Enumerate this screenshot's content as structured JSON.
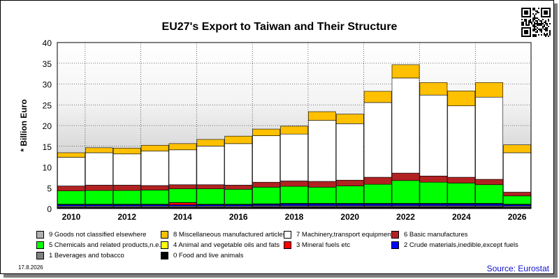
{
  "chart_data": {
    "type": "bar",
    "stacked": true,
    "title": "EU27's Export to Taiwan and Their Structure",
    "ylabel": "* Billion Euro",
    "xlabel": "",
    "ylim": [
      0,
      40
    ],
    "yticks": [
      0,
      5,
      10,
      15,
      20,
      25,
      30,
      35,
      40
    ],
    "categories": [
      "2010",
      "2011",
      "2012",
      "2013",
      "2014",
      "2015",
      "2016",
      "2017",
      "2018",
      "2019",
      "2020",
      "2021",
      "2022",
      "2023",
      "2024",
      "2025",
      "2026"
    ],
    "xtick_labels": [
      "2010",
      "2012",
      "2014",
      "2016",
      "2018",
      "2020",
      "2022",
      "2024",
      "2026"
    ],
    "grid": true,
    "series": [
      {
        "name": "0 Food and live animals",
        "color": "#000000",
        "values": [
          0.3,
          0.3,
          0.3,
          0.3,
          0.3,
          0.3,
          0.3,
          0.4,
          0.4,
          0.4,
          0.4,
          0.4,
          0.4,
          0.4,
          0.4,
          0.4,
          0.3
        ]
      },
      {
        "name": "1 Beverages and tobacco",
        "color": "#808080",
        "values": [
          0.3,
          0.3,
          0.3,
          0.3,
          0.3,
          0.3,
          0.3,
          0.3,
          0.3,
          0.3,
          0.3,
          0.3,
          0.3,
          0.3,
          0.3,
          0.3,
          0.3
        ]
      },
      {
        "name": "2 Crude materials,inedible,except fuels",
        "color": "#0000ff",
        "values": [
          0.3,
          0.3,
          0.3,
          0.3,
          0.3,
          0.3,
          0.3,
          0.3,
          0.4,
          0.4,
          0.4,
          0.4,
          0.4,
          0.4,
          0.4,
          0.4,
          0.3
        ]
      },
      {
        "name": "3 Mineral fuels etc",
        "color": "#ff0000",
        "values": [
          0.1,
          0.1,
          0.1,
          0.1,
          0.5,
          0.1,
          0.1,
          0.1,
          0.1,
          0.1,
          0.1,
          0.1,
          0.1,
          0.1,
          0.1,
          0.1,
          0.1
        ]
      },
      {
        "name": "4 Animal and vegetable oils and fats",
        "color": "#ffff00",
        "values": [
          0.05,
          0.05,
          0.05,
          0.05,
          0.05,
          0.05,
          0.05,
          0.05,
          0.05,
          0.05,
          0.05,
          0.05,
          0.05,
          0.05,
          0.05,
          0.05,
          0.05
        ]
      },
      {
        "name": "5 Chemicals and related products,n.e.s.",
        "color": "#00ff00",
        "values": [
          3.2,
          3.3,
          3.3,
          3.4,
          3.3,
          3.7,
          3.6,
          4.0,
          4.1,
          3.9,
          4.2,
          4.6,
          5.5,
          5.1,
          4.9,
          4.5,
          2.0
        ]
      },
      {
        "name": "6 Basic manufactures",
        "color": "#b22222",
        "values": [
          1.2,
          1.3,
          1.3,
          1.1,
          1.0,
          1.0,
          1.0,
          1.2,
          1.3,
          1.4,
          1.4,
          1.7,
          1.8,
          1.5,
          1.4,
          1.3,
          0.9
        ]
      },
      {
        "name": "7 Machinery,transport equipment",
        "color": "#ffffff",
        "values": [
          6.9,
          7.8,
          7.5,
          8.3,
          8.4,
          9.3,
          10.0,
          11.2,
          11.3,
          14.7,
          13.6,
          18.0,
          22.9,
          19.5,
          17.2,
          19.8,
          9.5
        ]
      },
      {
        "name": "8 Miscellaneous manufactured articles",
        "color": "#ffc000",
        "values": [
          1.1,
          1.2,
          1.4,
          1.4,
          1.5,
          1.6,
          1.8,
          1.6,
          1.9,
          2.1,
          2.3,
          2.7,
          3.2,
          3.0,
          3.6,
          3.5,
          1.9
        ]
      },
      {
        "name": "9 Goods not classified elsewhere",
        "color": "#b0b0b0",
        "values": [
          0,
          0,
          0,
          0,
          0,
          0,
          0,
          0,
          0,
          0,
          0,
          0,
          0,
          0,
          0,
          0,
          0
        ]
      }
    ],
    "legend_order": [
      9,
      8,
      7,
      6,
      5,
      4,
      3,
      2,
      1,
      0
    ],
    "legend_placement": "bottom"
  },
  "footer": {
    "date": "17.8.2026",
    "source": "Source: Eurostat"
  },
  "qr_icon": "qr-code-icon"
}
